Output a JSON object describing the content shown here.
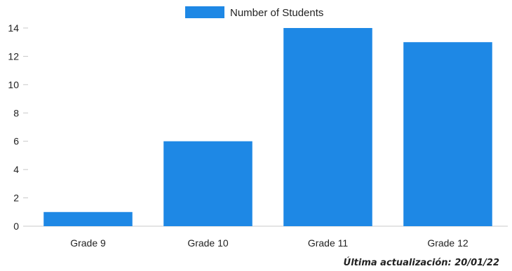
{
  "chart_data": {
    "type": "bar",
    "categories": [
      "Grade 9",
      "Grade 10",
      "Grade 11",
      "Grade 12"
    ],
    "series": [
      {
        "name": "Number of Students",
        "values": [
          1,
          6,
          14,
          13
        ]
      }
    ],
    "ylim": [
      0,
      14
    ],
    "yticks": [
      0,
      2,
      4,
      6,
      8,
      10,
      12,
      14
    ],
    "legend": "top-center",
    "grid": false,
    "bar_color": "#1E88E5"
  },
  "footnote": "Última actualización: 20/01/22"
}
